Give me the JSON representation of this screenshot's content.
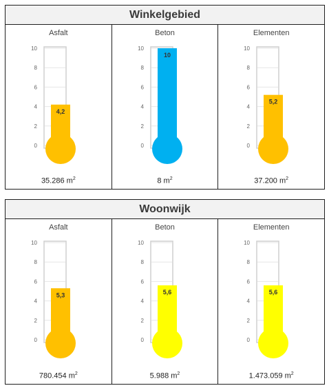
{
  "chart_data": [
    {
      "type": "bar",
      "section": "Winkelgebied",
      "categories": [
        "Asfalt",
        "Beton",
        "Elementen"
      ],
      "values": [
        4.2,
        10,
        5.2
      ],
      "value_labels": [
        "4,2",
        "10",
        "5,2"
      ],
      "areas": [
        "35.286 m",
        "8 m",
        "37.200 m"
      ],
      "area_unit_sup": "2",
      "colors": [
        "#FFC000",
        "#00B0F0",
        "#FFC000"
      ],
      "ylim": [
        0,
        10
      ],
      "yticks": [
        "0",
        "2",
        "4",
        "6",
        "8",
        "10"
      ]
    },
    {
      "type": "bar",
      "section": "Woonwijk",
      "categories": [
        "Asfalt",
        "Beton",
        "Elementen"
      ],
      "values": [
        5.3,
        5.6,
        5.6
      ],
      "value_labels": [
        "5,3",
        "5,6",
        "5,6"
      ],
      "areas": [
        "780.454 m",
        "5.988 m",
        "1.473.059 m"
      ],
      "area_unit_sup": "2",
      "colors": [
        "#FFC000",
        "#FFFF00",
        "#FFFF00"
      ],
      "ylim": [
        0,
        10
      ],
      "yticks": [
        "0",
        "2",
        "4",
        "6",
        "8",
        "10"
      ]
    }
  ]
}
